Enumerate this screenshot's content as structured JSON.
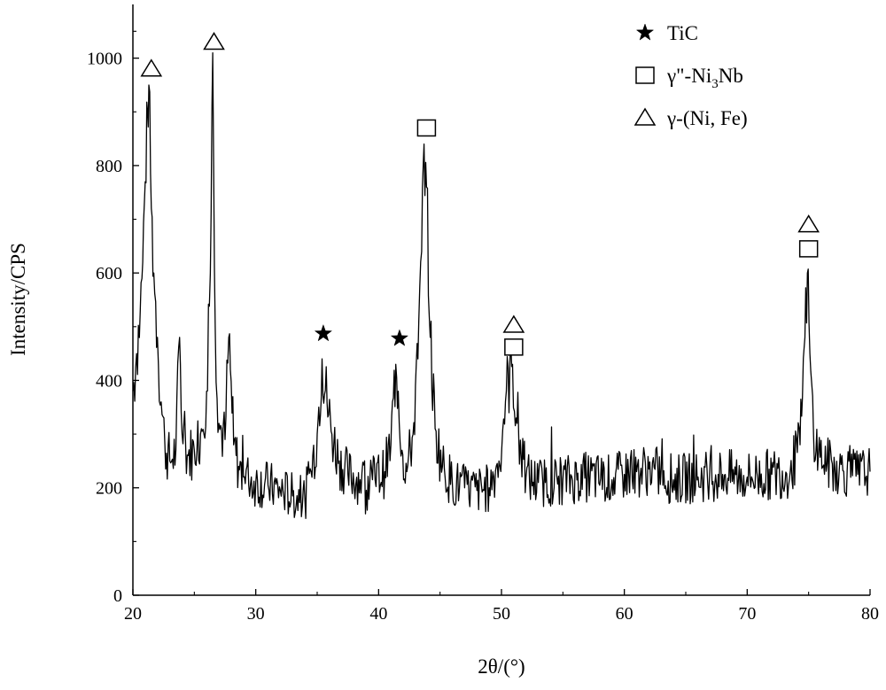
{
  "chart_data": {
    "type": "line",
    "xlabel": "2θ/(°)",
    "ylabel": "Intensity/CPS",
    "xlim": [
      20,
      80
    ],
    "ylim": [
      0,
      1100
    ],
    "x_ticks": [
      20,
      30,
      40,
      50,
      60,
      70,
      80
    ],
    "y_ticks": [
      0,
      200,
      400,
      600,
      800,
      1000
    ],
    "grid": false,
    "legend_position": "top-right",
    "legend": [
      {
        "marker": "star",
        "label_main": "TiC"
      },
      {
        "marker": "square",
        "label_main": "γ\"-Ni",
        "label_sub": "3",
        "label_tail": "Nb"
      },
      {
        "marker": "triangle",
        "label_main": "γ-(Ni, Fe)"
      }
    ],
    "series": [
      {
        "color": "#000000",
        "x": [
          20.0,
          20.3,
          20.6,
          20.8,
          21.0,
          21.2,
          21.3,
          21.5,
          21.7,
          22.0,
          22.3,
          22.6,
          23.0,
          23.5,
          23.8,
          24.0,
          24.5,
          25.0,
          25.5,
          26.0,
          26.3,
          26.5,
          26.7,
          27.0,
          27.5,
          27.8,
          28.2,
          28.6,
          29.0,
          30.0,
          31.0,
          32.0,
          33.0,
          34.0,
          34.5,
          35.0,
          35.4,
          35.8,
          36.2,
          36.8,
          37.5,
          38.5,
          39.5,
          40.5,
          41.0,
          41.4,
          41.6,
          41.9,
          42.3,
          42.8,
          43.2,
          43.5,
          43.7,
          43.9,
          44.2,
          44.6,
          45.2,
          46.0,
          47.0,
          48.0,
          49.0,
          49.8,
          50.4,
          50.9,
          51.2,
          51.6,
          52.0,
          53.0,
          55.0,
          57.0,
          59.0,
          60.0,
          61.0,
          62.0,
          64.0,
          66.0,
          68.0,
          70.0,
          72.0,
          73.5,
          74.3,
          74.7,
          74.9,
          75.1,
          75.4,
          75.8,
          76.5,
          77.5,
          79.0,
          80.0
        ],
        "y": [
          380,
          450,
          530,
          620,
          770,
          900,
          950,
          720,
          600,
          480,
          360,
          280,
          250,
          270,
          480,
          300,
          260,
          270,
          300,
          380,
          600,
          1010,
          500,
          320,
          290,
          480,
          280,
          240,
          220,
          210,
          205,
          195,
          185,
          180,
          230,
          300,
          440,
          360,
          300,
          250,
          225,
          215,
          215,
          230,
          280,
          430,
          380,
          270,
          230,
          300,
          440,
          640,
          840,
          760,
          480,
          310,
          240,
          210,
          200,
          195,
          200,
          250,
          380,
          430,
          330,
          260,
          220,
          210,
          215,
          220,
          215,
          225,
          230,
          235,
          215,
          220,
          225,
          220,
          225,
          230,
          280,
          480,
          600,
          450,
          300,
          265,
          245,
          235,
          225,
          230
        ]
      }
    ],
    "annotations": [
      {
        "marker": "triangle",
        "x": 21.5,
        "y": 980
      },
      {
        "marker": "triangle",
        "x": 26.6,
        "y": 1030
      },
      {
        "marker": "star",
        "x": 35.5,
        "y": 487
      },
      {
        "marker": "star",
        "x": 41.7,
        "y": 478
      },
      {
        "marker": "square",
        "x": 43.9,
        "y": 870
      },
      {
        "marker": "triangle",
        "x": 51.0,
        "y": 503
      },
      {
        "marker": "square",
        "x": 51.0,
        "y": 462
      },
      {
        "marker": "triangle",
        "x": 75.0,
        "y": 690
      },
      {
        "marker": "square",
        "x": 75.0,
        "y": 645
      }
    ]
  }
}
